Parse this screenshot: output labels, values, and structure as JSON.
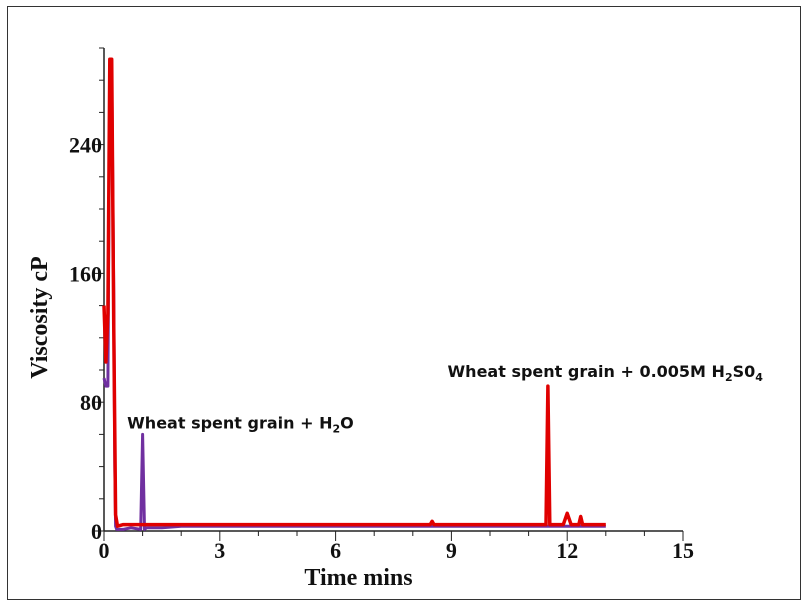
{
  "chart_data": {
    "type": "line",
    "xlabel": "Time mins",
    "ylabel": "Viscosity cP",
    "xlim": [
      0,
      15
    ],
    "ylim": [
      0,
      300
    ],
    "x_ticks": [
      0,
      3,
      6,
      9,
      12,
      15
    ],
    "y_ticks": [
      0,
      80,
      160,
      240
    ],
    "grid": false,
    "series": [
      {
        "name": "Wheat spent grain + H2O",
        "color": "#7030a0",
        "x": [
          0.0,
          0.05,
          0.1,
          0.15,
          0.2,
          0.25,
          0.28,
          0.3,
          0.33,
          0.5,
          0.7,
          0.95,
          1.0,
          1.05,
          1.1,
          1.5,
          2,
          4,
          6,
          8,
          10,
          12,
          13
        ],
        "y": [
          95,
          90,
          90,
          288,
          288,
          150,
          40,
          3,
          1,
          1,
          2,
          1,
          60,
          1,
          2,
          2,
          3,
          3,
          3,
          3,
          3,
          3,
          3
        ]
      },
      {
        "name": "Wheat spent grain + 0.005M H2SO4",
        "color": "#e00000",
        "x": [
          0.0,
          0.05,
          0.1,
          0.15,
          0.2,
          0.25,
          0.3,
          0.35,
          0.5,
          1,
          2,
          4,
          6,
          8,
          8.45,
          8.5,
          8.55,
          9,
          11,
          11.45,
          11.5,
          11.55,
          11.9,
          12.0,
          12.1,
          12.3,
          12.35,
          12.4,
          12.6,
          13
        ],
        "y": [
          140,
          105,
          135,
          293,
          293,
          130,
          10,
          3,
          4,
          4,
          4,
          4,
          4,
          4,
          4,
          6,
          4,
          4,
          4,
          4,
          90,
          4,
          4,
          11,
          4,
          4,
          9,
          4,
          4,
          4
        ]
      }
    ],
    "annotations": [
      {
        "base": "Wheat spent grain + H",
        "sub": "2",
        "tail": "O",
        "x": 0.6,
        "y": 60
      },
      {
        "base": "Wheat spent grain + 0.005M H",
        "sub": "2",
        "mid": "S0",
        "sub2": "4",
        "x": 8.9,
        "y": 92
      }
    ]
  }
}
